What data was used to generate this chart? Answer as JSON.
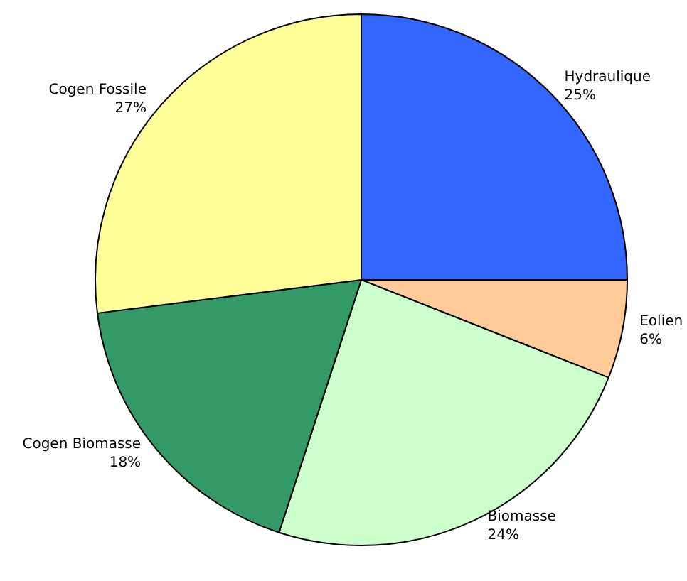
{
  "chart_data": {
    "type": "pie",
    "categories": [
      "Hydraulique",
      "Eolien",
      "Biomasse",
      "Cogen Biomasse",
      "Cogen Fossile"
    ],
    "values": [
      25,
      6,
      24,
      18,
      27
    ],
    "value_labels": [
      "25%",
      "6%",
      "24%",
      "18%",
      "27%"
    ],
    "colors": [
      "#3366ff",
      "#ffcc99",
      "#ccffcc",
      "#339966",
      "#ffff99"
    ],
    "legend": false
  }
}
